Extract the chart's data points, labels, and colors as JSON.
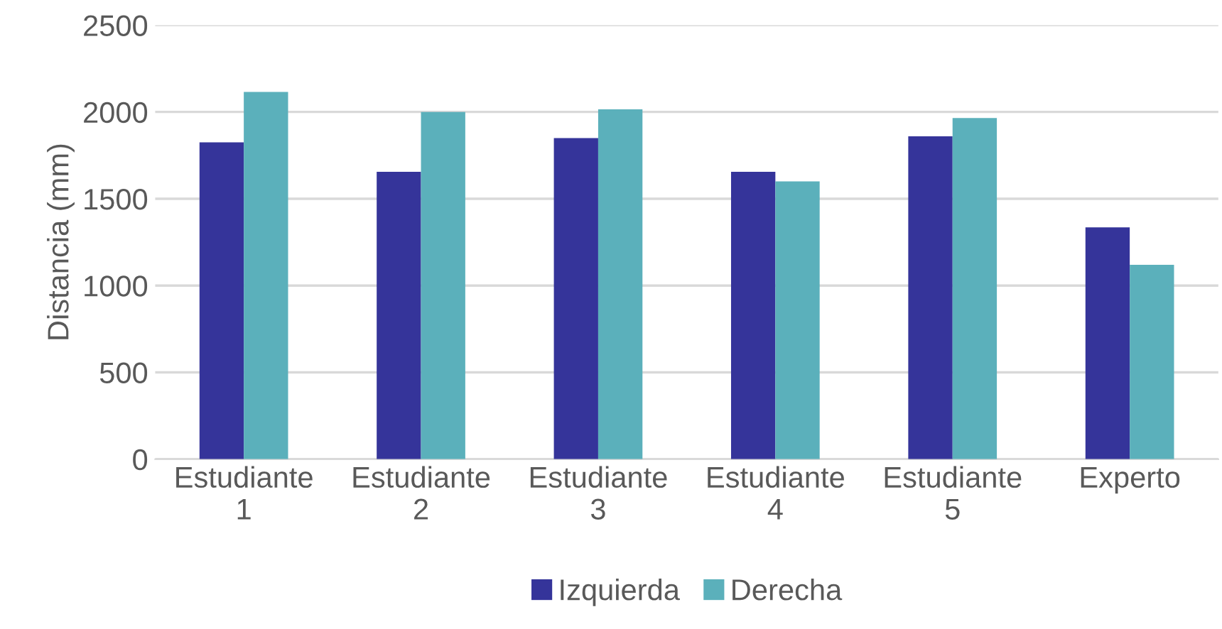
{
  "chart_data": {
    "type": "bar",
    "ylabel": "Distancia (mm)",
    "categories": [
      "Estudiante\n1",
      "Estudiante\n2",
      "Estudiante\n3",
      "Estudiante\n4",
      "Estudiante\n5",
      "Experto"
    ],
    "series": [
      {
        "name": "Izquierda",
        "color": "#35349a",
        "values": [
          1825,
          1655,
          1850,
          1655,
          1860,
          1335
        ]
      },
      {
        "name": "Derecha",
        "color": "#5bb0bb",
        "values": [
          2115,
          2000,
          2015,
          1600,
          1965,
          1120
        ]
      }
    ],
    "ylim": [
      0,
      2500
    ],
    "yticks": [
      0,
      500,
      1000,
      1500,
      2000,
      2500
    ],
    "grid": "y",
    "legend": "bottom"
  }
}
